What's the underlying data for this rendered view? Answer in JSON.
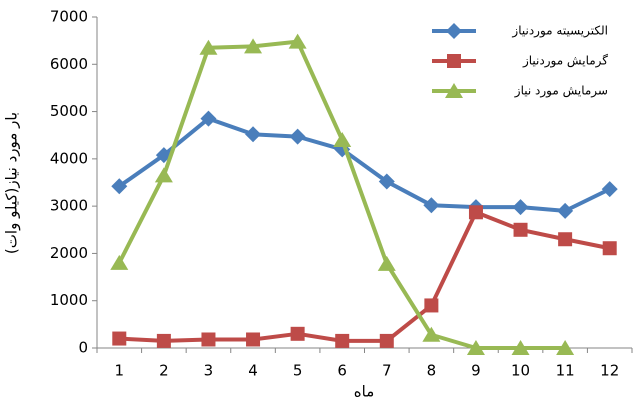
{
  "chart_data": {
    "type": "line",
    "categories": [
      "1",
      "2",
      "3",
      "4",
      "5",
      "6",
      "7",
      "8",
      "9",
      "10",
      "11",
      "12"
    ],
    "x_label": "ماه",
    "y_label": "بار مورد نیاز(کیلو وات)",
    "ylim": [
      0,
      7000
    ],
    "yticks": [
      0,
      1000,
      2000,
      3000,
      4000,
      5000,
      6000,
      7000
    ],
    "grid": false,
    "legend": "upper right",
    "series": [
      {
        "name": "الکتریسیته موردنیاز",
        "color": "#4a7ebb",
        "marker": "diamond",
        "values": [
          3420,
          4080,
          4850,
          4520,
          4470,
          4200,
          3520,
          3020,
          2980,
          2980,
          2900,
          3360
        ]
      },
      {
        "name": "گرمایش موردنیاز",
        "color": "#be4b48",
        "marker": "square",
        "values": [
          200,
          150,
          180,
          180,
          300,
          150,
          150,
          900,
          2870,
          2500,
          2300,
          2110
        ]
      },
      {
        "name": "سرمایش مورد نیاز",
        "color": "#98b954",
        "marker": "triangle",
        "values": [
          1800,
          3650,
          6350,
          6380,
          6480,
          4400,
          1780,
          280,
          0,
          0,
          0,
          null
        ]
      }
    ]
  }
}
